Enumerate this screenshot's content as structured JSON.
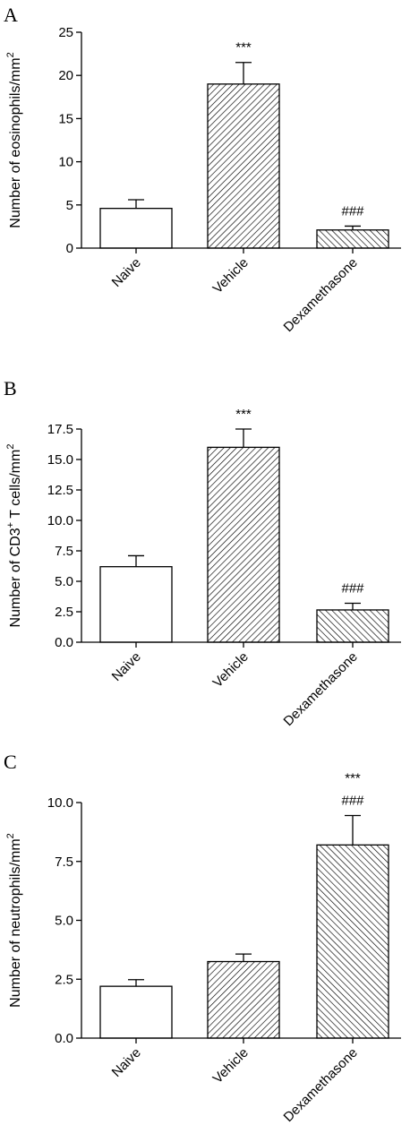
{
  "chart_data": [
    {
      "type": "bar",
      "panel": "A",
      "categories": [
        "Naive",
        "Vehicle",
        "Dexamethasone"
      ],
      "values": [
        4.6,
        19.0,
        2.1
      ],
      "errors": [
        1.0,
        2.5,
        0.45
      ],
      "patterns": [
        "none",
        "hatch-right",
        "hatch-left"
      ],
      "annotations": [
        [],
        [
          "***"
        ],
        [
          "###"
        ]
      ],
      "ylabel_main": "Number of eosinophils/mm",
      "ylabel_sup": "2",
      "ylabel_mid": "",
      "ylabel_tail": "",
      "ylim": [
        0,
        25
      ],
      "yticks": [
        0,
        5,
        10,
        15,
        20,
        25
      ],
      "ytick_labels": [
        "0",
        "5",
        "10",
        "15",
        "20",
        "25"
      ],
      "grid": false
    },
    {
      "type": "bar",
      "panel": "B",
      "categories": [
        "Naive",
        "Vehicle",
        "Dexamethasone"
      ],
      "values": [
        6.2,
        16.0,
        2.65
      ],
      "errors": [
        0.9,
        1.5,
        0.55
      ],
      "patterns": [
        "none",
        "hatch-right",
        "hatch-left"
      ],
      "annotations": [
        [],
        [
          "***"
        ],
        [
          "###"
        ]
      ],
      "ylabel_main": "Number of CD3",
      "ylabel_sup": "+",
      "ylabel_mid": " T cells/mm",
      "ylabel_tail": "2",
      "ylim": [
        0,
        17.5
      ],
      "yticks": [
        0,
        2.5,
        5,
        7.5,
        10,
        12.5,
        15,
        17.5
      ],
      "ytick_labels": [
        "0.0",
        "2.5",
        "5.0",
        "7.5",
        "10.0",
        "12.5",
        "15.0",
        "17.5"
      ],
      "grid": false
    },
    {
      "type": "bar",
      "panel": "C",
      "categories": [
        "Naive",
        "Vehicle",
        "Dexamethasone"
      ],
      "values": [
        2.2,
        3.25,
        8.2
      ],
      "errors": [
        0.28,
        0.32,
        1.25
      ],
      "patterns": [
        "none",
        "hatch-right",
        "hatch-left"
      ],
      "annotations": [
        [],
        [],
        [
          "***",
          "###"
        ]
      ],
      "ylabel_main": "Number of neutrophils/mm",
      "ylabel_sup": "2",
      "ylabel_mid": "",
      "ylabel_tail": "",
      "ylim": [
        0,
        10
      ],
      "yticks": [
        0,
        2.5,
        5,
        7.5,
        10
      ],
      "ytick_labels": [
        "0.0",
        "2.5",
        "5.0",
        "7.5",
        "10.0"
      ],
      "grid": false
    }
  ]
}
